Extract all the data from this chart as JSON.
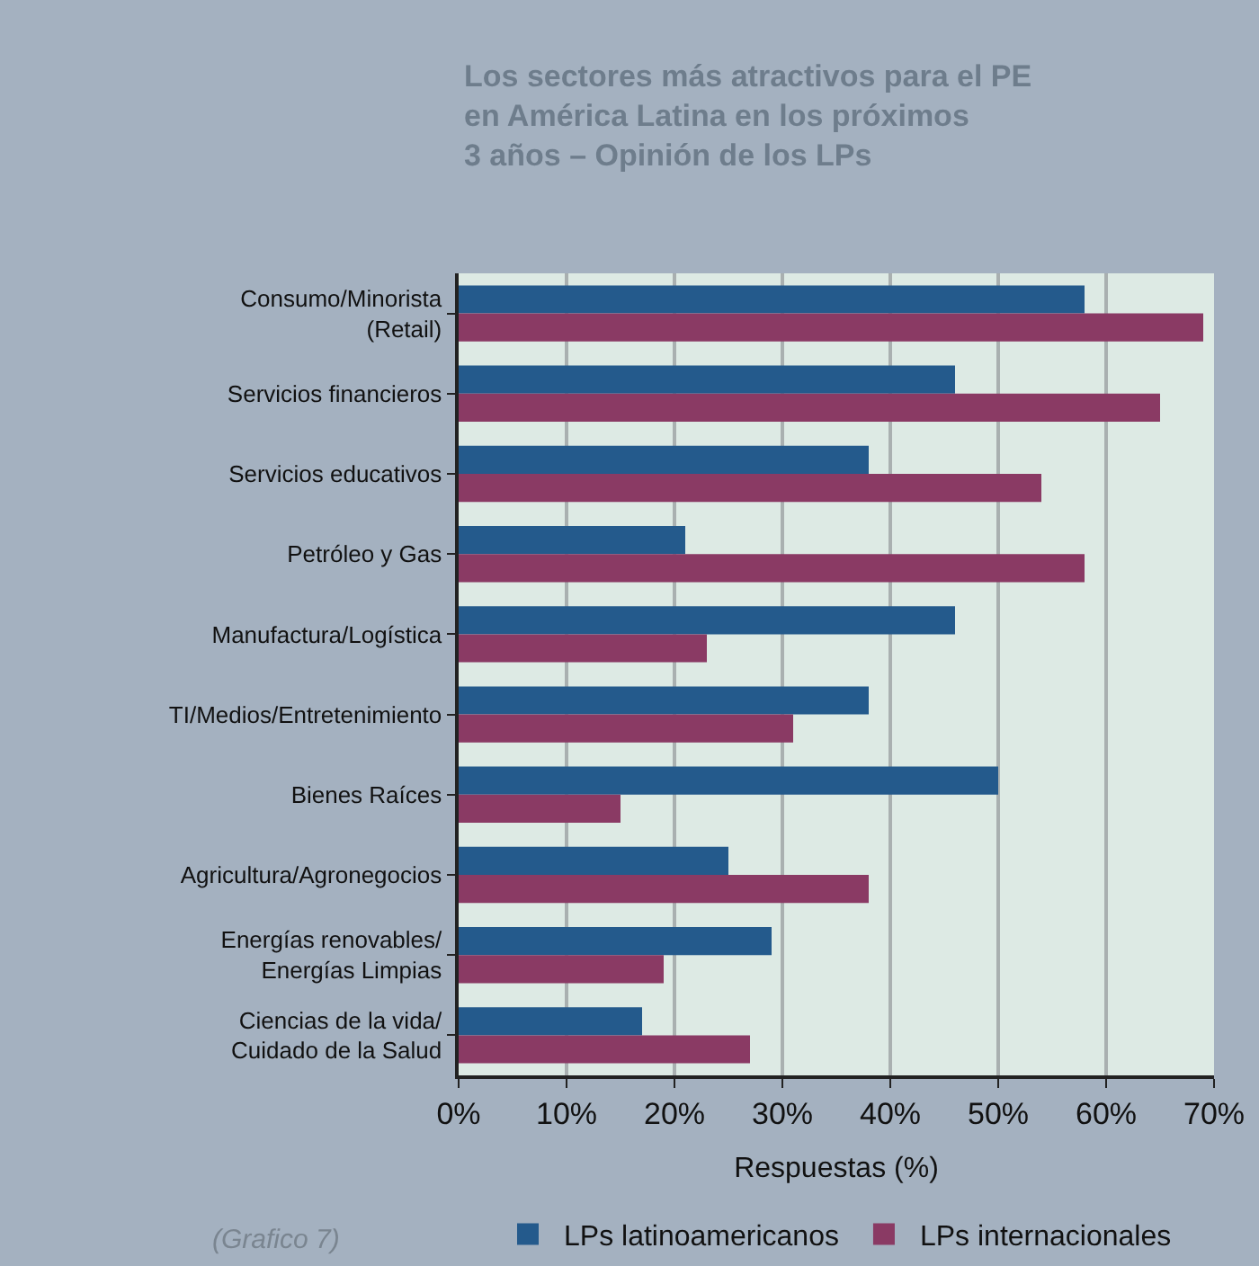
{
  "chart_data": {
    "type": "bar",
    "orientation": "horizontal",
    "title": "Los sectores más atractivos para el PE\nen América Latina en los próximos\n3 años – Opinión de los LPs",
    "xlabel": "Respuestas (%)",
    "categories": [
      "Consumo/Minorista\n(Retail)",
      "Servicios financieros",
      "Servicios educativos",
      "Petróleo y Gas",
      "Manufactura/Logística",
      "TI/Medios/Entretenimiento",
      "Bienes Raíces",
      "Agricultura/Agronegocios",
      "Energías renovables/\nEnergías Limpias",
      "Ciencias de la vida/\nCuidado de la Salud"
    ],
    "series": [
      {
        "name": "LPs latinoamericanos",
        "color": "#245a8c",
        "values": [
          58,
          46,
          38,
          21,
          46,
          38,
          50,
          25,
          29,
          17
        ]
      },
      {
        "name": "LPs internacionales",
        "color": "#8a3a64",
        "values": [
          69,
          65,
          54,
          58,
          23,
          31,
          15,
          38,
          19,
          27
        ]
      }
    ],
    "xlim": [
      0,
      70
    ],
    "xticks": [
      {
        "value": 0,
        "label": "0%"
      },
      {
        "value": 10,
        "label": "10%"
      },
      {
        "value": 20,
        "label": "20%"
      },
      {
        "value": 30,
        "label": "30%"
      },
      {
        "value": 40,
        "label": "40%"
      },
      {
        "value": 50,
        "label": "50%"
      },
      {
        "value": 60,
        "label": "60%"
      },
      {
        "value": 70,
        "label": "70%"
      }
    ],
    "grid": "x",
    "legend": "bottom",
    "annotations": [
      "(Grafico 7)"
    ]
  }
}
